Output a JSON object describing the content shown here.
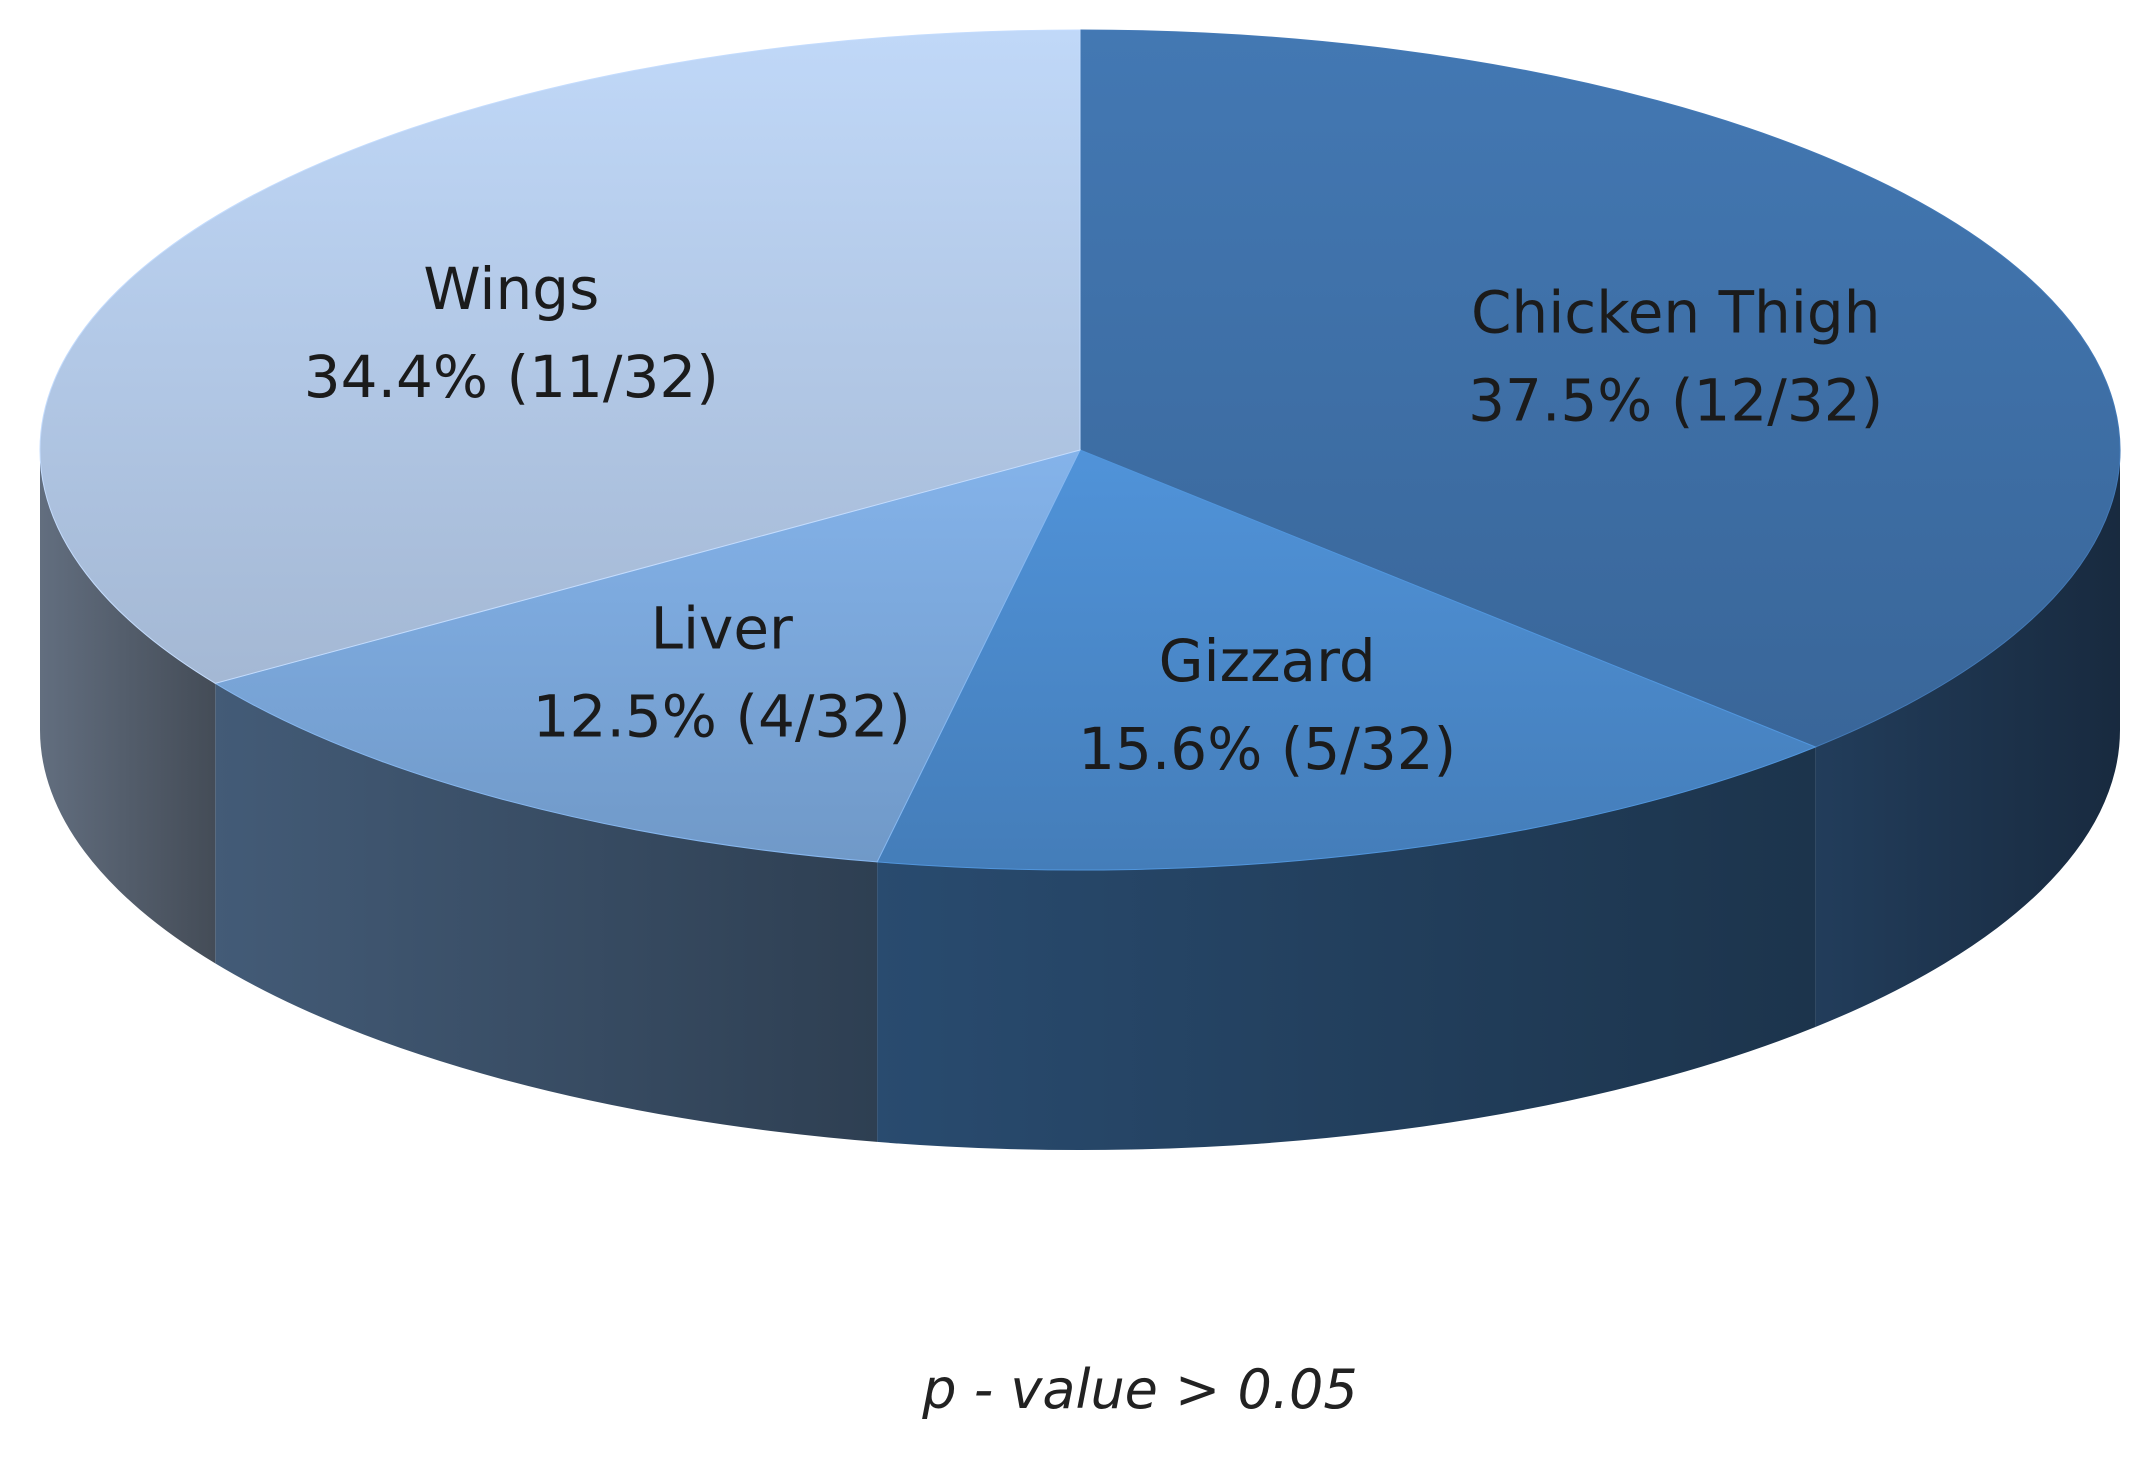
{
  "chart_data": {
    "type": "pie",
    "style": "3d",
    "total": 32,
    "slices": [
      {
        "name": "Chicken Thigh",
        "percent_label": "37.5% (12/32)",
        "value": 12,
        "color": "#3e6fa6"
      },
      {
        "name": "Gizzard",
        "percent_label": "15.6% (5/32)",
        "value": 5,
        "color": "#4a88c9"
      },
      {
        "name": "Liver",
        "percent_label": "12.5% (4/32)",
        "value": 4,
        "color": "#7aa6d9"
      },
      {
        "name": "Wings",
        "percent_label": "34.4% (11/32)",
        "value": 11,
        "color": "#b2c8e6"
      }
    ],
    "annotation": "p - value > 0.05",
    "legend": "none"
  }
}
